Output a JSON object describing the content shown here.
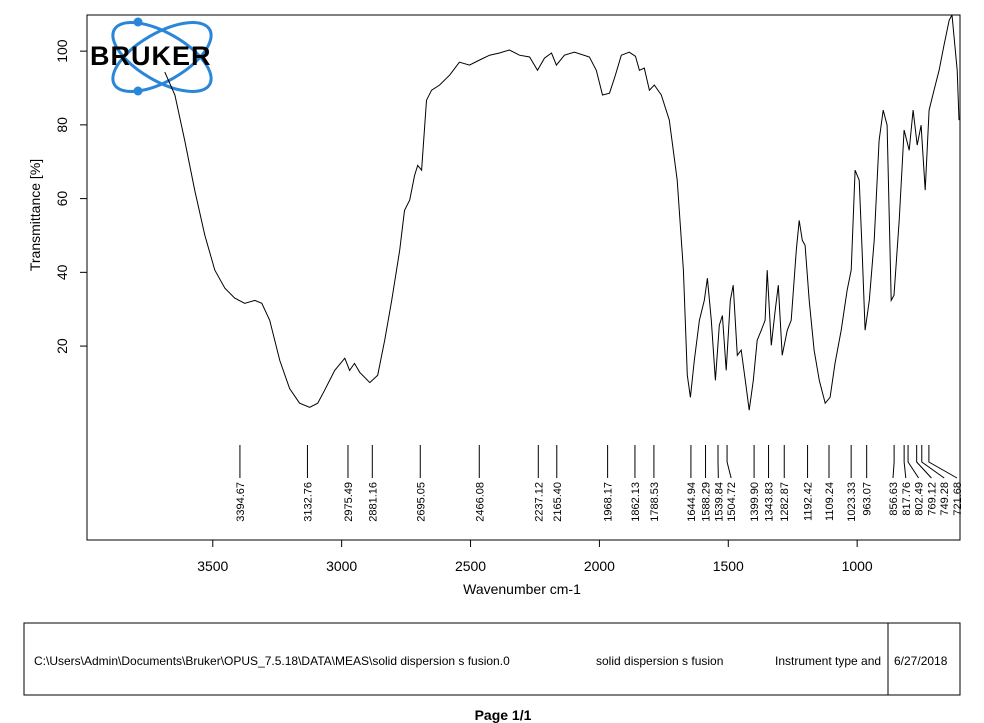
{
  "chart_data": {
    "type": "line",
    "color": "#000000",
    "ylabel": "Transmittance [%]",
    "xlabel": "Wavenumber cm-1",
    "xlim": [
      3988,
      601
    ],
    "ylim": [
      -32.6,
      109.8
    ],
    "xticks": [
      3500,
      3000,
      2500,
      2000,
      1500,
      1000
    ],
    "yticks": [
      20,
      40,
      60,
      80,
      100
    ],
    "x": [
      3686,
      3647,
      3609,
      3570,
      3531,
      3492,
      3453,
      3415,
      3376,
      3337,
      3310,
      3279,
      3240,
      3202,
      3163,
      3124,
      3093,
      3066,
      3027,
      2988,
      2969,
      2950,
      2930,
      2891,
      2860,
      2833,
      2806,
      2775,
      2756,
      2736,
      2717,
      2705,
      2690,
      2671,
      2651,
      2620,
      2581,
      2543,
      2504,
      2465,
      2426,
      2388,
      2349,
      2310,
      2271,
      2240,
      2213,
      2186,
      2167,
      2136,
      2097,
      2039,
      2012,
      1988,
      1961,
      1938,
      1915,
      1884,
      1860,
      1845,
      1826,
      1806,
      1787,
      1760,
      1729,
      1698,
      1674,
      1659,
      1647,
      1632,
      1612,
      1593,
      1581,
      1566,
      1550,
      1535,
      1523,
      1508,
      1492,
      1481,
      1465,
      1450,
      1434,
      1419,
      1403,
      1388,
      1372,
      1357,
      1349,
      1333,
      1318,
      1306,
      1291,
      1271,
      1256,
      1236,
      1225,
      1213,
      1202,
      1186,
      1167,
      1147,
      1124,
      1105,
      1086,
      1062,
      1039,
      1023,
      1008,
      992,
      981,
      969,
      953,
      934,
      915,
      899,
      884,
      868,
      857,
      837,
      818,
      798,
      783,
      767,
      752,
      736,
      721,
      702,
      682,
      663,
      643,
      632,
      612,
      605
    ],
    "values": [
      94.3,
      88.1,
      75.8,
      62.3,
      50.1,
      40.6,
      35.7,
      33.0,
      31.6,
      32.4,
      31.6,
      27.0,
      16.1,
      8.5,
      4.5,
      3.4,
      4.5,
      8.0,
      13.4,
      16.7,
      13.4,
      15.3,
      12.9,
      10.1,
      12.1,
      21.6,
      32.4,
      46.0,
      56.8,
      59.6,
      66.3,
      69.0,
      67.7,
      86.7,
      89.4,
      90.8,
      93.5,
      97.0,
      96.2,
      97.6,
      98.9,
      99.5,
      100.3,
      98.9,
      98.4,
      94.8,
      98.1,
      99.5,
      96.2,
      98.9,
      99.7,
      98.4,
      94.8,
      88.1,
      88.6,
      93.5,
      98.9,
      99.7,
      98.6,
      94.8,
      95.4,
      89.4,
      90.8,
      88.1,
      81.3,
      65.0,
      40.6,
      12.1,
      6.1,
      16.1,
      27.0,
      32.4,
      38.4,
      27.0,
      10.7,
      25.6,
      28.3,
      13.4,
      32.4,
      36.5,
      17.5,
      18.9,
      10.7,
      2.6,
      10.7,
      21.6,
      24.3,
      27.0,
      40.6,
      20.2,
      29.7,
      36.5,
      17.5,
      24.3,
      27.0,
      46.0,
      54.1,
      48.7,
      47.3,
      32.4,
      18.9,
      10.7,
      4.5,
      6.1,
      15.3,
      24.3,
      35.1,
      40.6,
      67.7,
      65.0,
      46.0,
      24.3,
      32.4,
      48.7,
      75.8,
      84.0,
      79.9,
      32.4,
      33.8,
      54.1,
      78.6,
      73.1,
      84.0,
      74.5,
      79.9,
      62.3,
      84.0,
      89.4,
      94.8,
      101.6,
      108.4,
      109.8,
      94.8,
      81.3
    ],
    "peaks": [
      3394.67,
      3132.76,
      2975.49,
      2881.16,
      2695.05,
      2466.08,
      2237.12,
      {
        "value": 2165.4,
        "label": "2165.40"
      },
      1968.17,
      1862.13,
      1788.53,
      1644.94,
      1588.29,
      1539.84,
      1504.72,
      {
        "value": 1399.9,
        "label": "1399.90"
      },
      1343.83,
      1282.87,
      1192.42,
      1109.24,
      1023.33,
      963.07,
      856.63,
      817.76,
      802.49,
      769.12,
      749.28,
      721.68
    ]
  },
  "logo": "BRUKER",
  "footer": {
    "file_path": "C:\\Users\\Admin\\Documents\\Bruker\\OPUS_7.5.18\\DATA\\MEAS\\solid dispersion s fusion.0",
    "sample_name": "solid dispersion s fusion",
    "instrument": "Instrument type and",
    "date": "6/27/2018",
    "page": "Page 1/1"
  }
}
